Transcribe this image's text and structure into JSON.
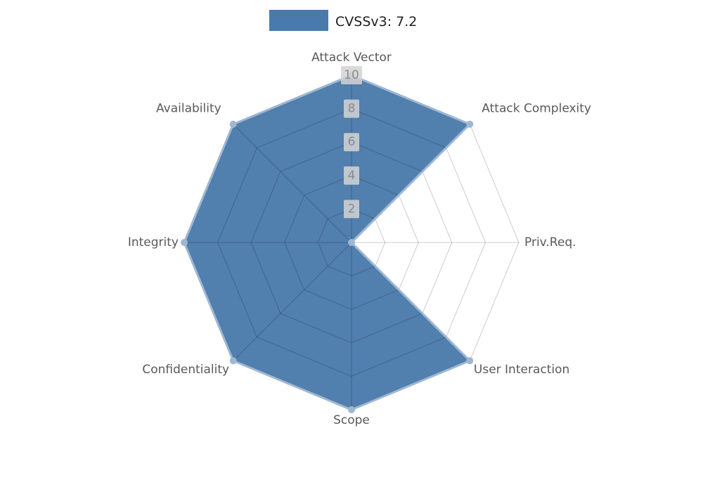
{
  "page": {
    "background": "#ffffff"
  },
  "chart_data": {
    "type": "radar",
    "title": "CVSSv3: 7.2",
    "categories": [
      "Attack Vector",
      "Attack Complexity",
      "Priv.Req.",
      "User Interaction",
      "Scope",
      "Confidentiality",
      "Integrity",
      "Availability"
    ],
    "values": [
      10,
      10,
      0,
      10,
      10,
      10,
      10,
      10
    ],
    "max": 10,
    "ticks": [
      2,
      4,
      6,
      8,
      10
    ],
    "grid": true,
    "legend_position": "top",
    "start_axis": "top",
    "direction": "clockwise",
    "colors": {
      "fill": "#4a7aab",
      "line": "#9fb7d2",
      "marker": "#9fb7d2",
      "grid": "rgba(0,0,0,0.2)",
      "tick_text": "#8c8c8c",
      "tick_bg": "#d4d4d4",
      "axis_label": "#595959",
      "legend_text": "#1f1f1f"
    }
  }
}
